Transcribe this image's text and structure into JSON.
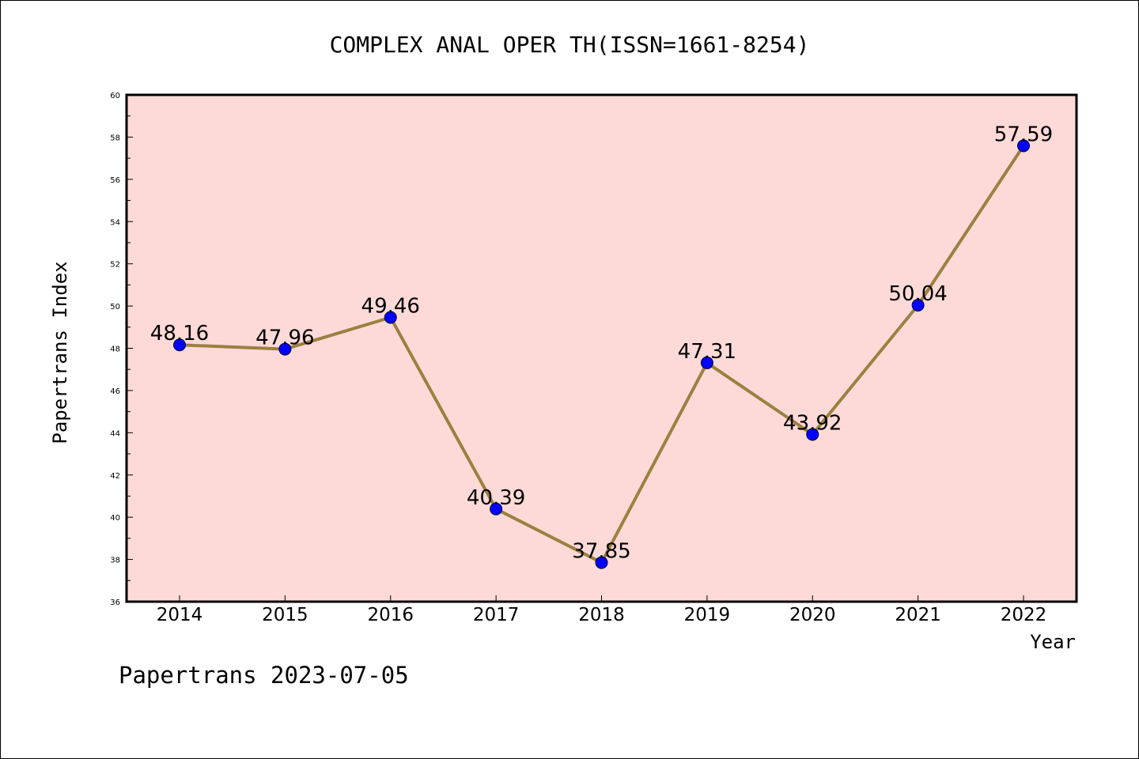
{
  "footer": {
    "text": "Papertrans 2023-07-05"
  },
  "colors": {
    "plot_background": "#fddad8",
    "line": "#9c8040",
    "marker": "#0000ff",
    "axis": "#000000"
  },
  "chart_data": {
    "type": "line",
    "title": "COMPLEX ANAL OPER TH(ISSN=1661-8254)",
    "xlabel": "Year",
    "ylabel": "Papertrans Index",
    "categories": [
      "2014",
      "2015",
      "2016",
      "2017",
      "2018",
      "2019",
      "2020",
      "2021",
      "2022"
    ],
    "series": [
      {
        "values": [
          48.16,
          47.96,
          49.46,
          40.39,
          37.85,
          47.31,
          43.92,
          50.04,
          57.59
        ],
        "labels": [
          "48.16",
          "47.96",
          "49.46",
          "40.39",
          "37.85",
          "47.31",
          "43.92",
          "50.04",
          "57.59"
        ]
      }
    ],
    "ylim": [
      36,
      60
    ],
    "y_ticks": [
      "36",
      "38",
      "40",
      "42",
      "44",
      "46",
      "48",
      "50",
      "52",
      "54",
      "56",
      "58",
      "60"
    ],
    "grid": false,
    "legend": "none",
    "markers": true
  }
}
